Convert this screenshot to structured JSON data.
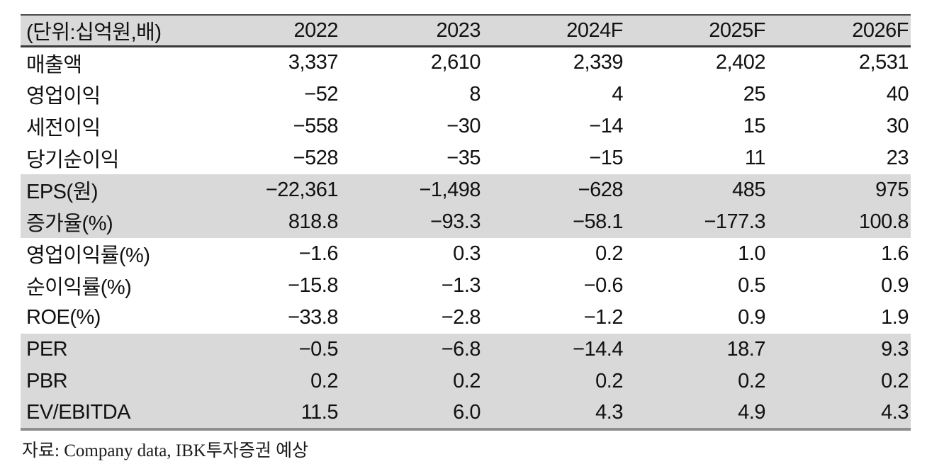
{
  "table": {
    "columns": [
      "(단위:십억원,배)",
      "2022",
      "2023",
      "2024F",
      "2025F",
      "2026F"
    ],
    "rows": [
      {
        "label": "매출액",
        "values": [
          "3,337",
          "2,610",
          "2,339",
          "2,402",
          "2,531"
        ],
        "band": "white"
      },
      {
        "label": "영업이익",
        "values": [
          "−52",
          "8",
          "4",
          "25",
          "40"
        ],
        "band": "white"
      },
      {
        "label": "세전이익",
        "values": [
          "−558",
          "−30",
          "−14",
          "15",
          "30"
        ],
        "band": "white"
      },
      {
        "label": "당기순이익",
        "values": [
          "−528",
          "−35",
          "−15",
          "11",
          "23"
        ],
        "band": "white"
      },
      {
        "label": "EPS(원)",
        "values": [
          "−22,361",
          "−1,498",
          "−628",
          "485",
          "975"
        ],
        "band": "gray"
      },
      {
        "label": "증가율(%)",
        "values": [
          "818.8",
          "−93.3",
          "−58.1",
          "−177.3",
          "100.8"
        ],
        "band": "gray"
      },
      {
        "label": "영업이익률(%)",
        "values": [
          "−1.6",
          "0.3",
          "0.2",
          "1.0",
          "1.6"
        ],
        "band": "white"
      },
      {
        "label": "순이익률(%)",
        "values": [
          "−15.8",
          "−1.3",
          "−0.6",
          "0.5",
          "0.9"
        ],
        "band": "white"
      },
      {
        "label": "ROE(%)",
        "values": [
          "−33.8",
          "−2.8",
          "−1.2",
          "0.9",
          "1.9"
        ],
        "band": "white"
      },
      {
        "label": "PER",
        "values": [
          "−0.5",
          "−6.8",
          "−14.4",
          "18.7",
          "9.3"
        ],
        "band": "gray"
      },
      {
        "label": "PBR",
        "values": [
          "0.2",
          "0.2",
          "0.2",
          "0.2",
          "0.2"
        ],
        "band": "gray"
      },
      {
        "label": "EV/EBITDA",
        "values": [
          "11.5",
          "6.0",
          "4.3",
          "4.9",
          "4.3"
        ],
        "band": "gray"
      }
    ],
    "colors": {
      "band_gray": "#d9d9d9",
      "border_top": "#4a4a4a",
      "border_header": "#3a3a3a",
      "border_bottom": "#8f8f8f",
      "text": "#111111"
    }
  },
  "footer": {
    "source_note": "자료: Company data, IBK투자증권 예상"
  }
}
